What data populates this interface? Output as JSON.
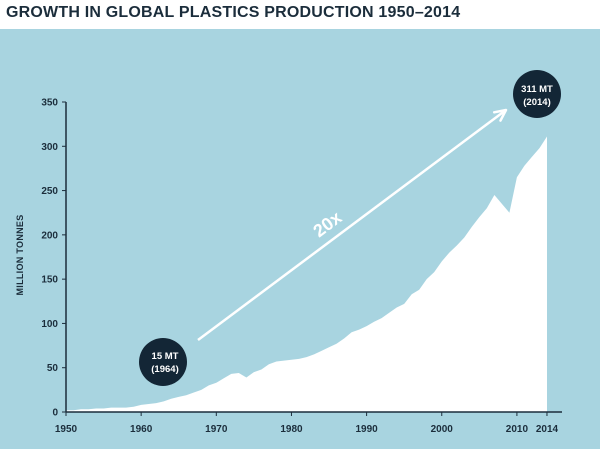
{
  "title": "GROWTH IN GLOBAL PLASTICS PRODUCTION 1950–2014",
  "colors": {
    "background": "#a8d4e0",
    "area": "#ffffff",
    "bubble": "#132636",
    "text": "#1b2d3b"
  },
  "chart_data": {
    "type": "area",
    "title": "GROWTH IN GLOBAL PLASTICS PRODUCTION 1950–2014",
    "xlabel": "",
    "ylabel": "MILLION TONNES",
    "xlim": [
      1950,
      2016
    ],
    "ylim": [
      0,
      350
    ],
    "x_ticks": [
      1950,
      1960,
      1970,
      1980,
      1990,
      2000,
      2010,
      2014
    ],
    "x_tick_labels": [
      "1950",
      "1960",
      "1970",
      "1980",
      "1990",
      "2000",
      "2010",
      "2014"
    ],
    "y_ticks": [
      0,
      50,
      100,
      150,
      200,
      250,
      300,
      350
    ],
    "y_tick_labels": [
      "0",
      "50",
      "100",
      "150",
      "200",
      "250",
      "300",
      "350"
    ],
    "series": [
      {
        "name": "Global plastics production",
        "x": [
          1950,
          1951,
          1952,
          1953,
          1954,
          1955,
          1956,
          1957,
          1958,
          1959,
          1960,
          1961,
          1962,
          1963,
          1964,
          1965,
          1966,
          1967,
          1968,
          1969,
          1970,
          1971,
          1972,
          1973,
          1974,
          1975,
          1976,
          1977,
          1978,
          1979,
          1980,
          1981,
          1982,
          1983,
          1984,
          1985,
          1986,
          1987,
          1988,
          1989,
          1990,
          1991,
          1992,
          1993,
          1994,
          1995,
          1996,
          1997,
          1998,
          1999,
          2000,
          2001,
          2002,
          2003,
          2004,
          2005,
          2006,
          2007,
          2008,
          2009,
          2010,
          2011,
          2012,
          2013,
          2014
        ],
        "values": [
          2,
          2,
          3,
          3,
          4,
          4,
          5,
          5,
          5,
          6,
          8,
          9,
          10,
          12,
          15,
          17,
          19,
          22,
          25,
          30,
          33,
          38,
          43,
          44,
          39,
          45,
          48,
          54,
          57,
          58,
          59,
          60,
          62,
          65,
          69,
          73,
          77,
          83,
          90,
          93,
          97,
          102,
          106,
          112,
          118,
          122,
          133,
          138,
          150,
          158,
          170,
          180,
          188,
          197,
          209,
          220,
          230,
          245,
          235,
          225,
          265,
          278,
          288,
          298,
          311
        ]
      }
    ],
    "annotations": [
      {
        "label_line1": "15 MT",
        "label_line2": "(1964)",
        "x": 1964,
        "y": 15
      },
      {
        "label_line1": "311 MT",
        "label_line2": "(2014)",
        "x": 2014,
        "y": 311
      }
    ],
    "growth_label": "20x"
  }
}
